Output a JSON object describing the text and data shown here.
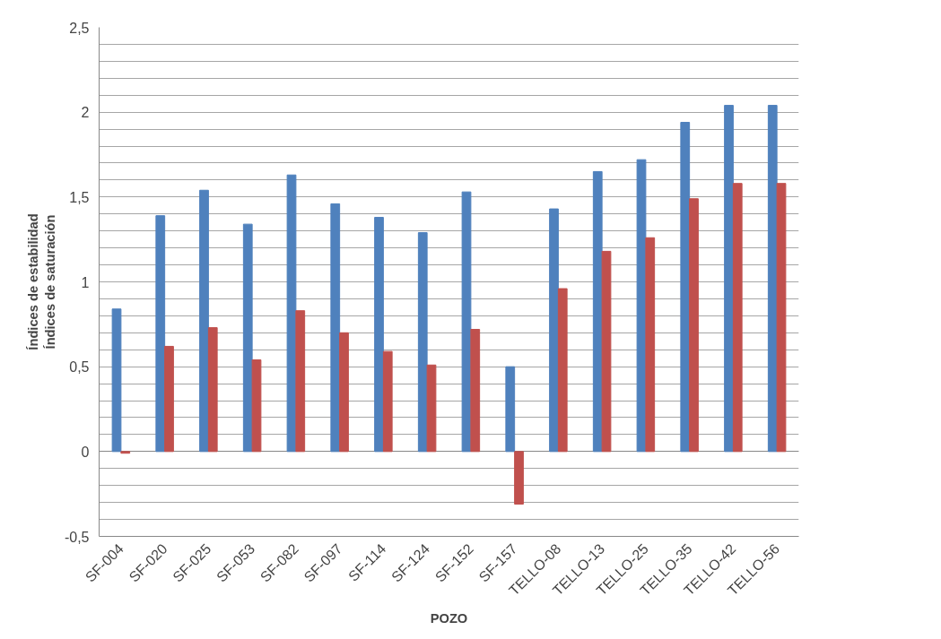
{
  "chart_data": {
    "type": "bar",
    "xlabel": "POZO",
    "ylabel": "Índices de estabilidad\nÍndices de saturación",
    "categories": [
      "SF-004",
      "SF-020",
      "SF-025",
      "SF-053",
      "SF-082",
      "SF-097",
      "SF-114",
      "SF-124",
      "SF-152",
      "SF-157",
      "TELLO-08",
      "TELLO-13",
      "TELLO-25",
      "TELLO-35",
      "TELLO-42",
      "TELLO-56"
    ],
    "series": [
      {
        "color": "#4f81bd",
        "values": [
          0.84,
          1.39,
          1.54,
          1.34,
          1.63,
          1.46,
          1.38,
          1.29,
          1.53,
          0.5,
          1.43,
          1.65,
          1.72,
          1.94,
          2.04,
          2.04
        ]
      },
      {
        "color": "#c0504d",
        "values": [
          -0.01,
          0.62,
          0.73,
          0.54,
          0.83,
          0.7,
          0.59,
          0.51,
          0.72,
          -0.31,
          0.96,
          1.18,
          1.26,
          1.49,
          1.58,
          1.58
        ]
      }
    ],
    "ylim": [
      -0.5,
      2.5
    ],
    "yticks": [
      {
        "value": -0.5,
        "label": "-0,5"
      },
      {
        "value": -0.4,
        "label": null
      },
      {
        "value": -0.3,
        "label": null
      },
      {
        "value": -0.2,
        "label": null
      },
      {
        "value": -0.1,
        "label": null
      },
      0,
      {
        "value": 0.1,
        "label": null
      },
      {
        "value": 0.2,
        "label": null
      },
      {
        "value": 0.3,
        "label": null
      },
      {
        "value": 0.4,
        "label": null
      },
      {
        "value": 0.5,
        "label": "0,5"
      },
      {
        "value": 0.6,
        "label": null
      },
      {
        "value": 0.7,
        "label": null
      },
      {
        "value": 0.8,
        "label": null
      },
      {
        "value": 0.9,
        "label": null
      },
      1,
      {
        "value": 1.1,
        "label": null
      },
      {
        "value": 1.2,
        "label": null
      },
      {
        "value": 1.3,
        "label": null
      },
      {
        "value": 1.4,
        "label": null
      },
      {
        "value": 1.5,
        "label": "1,5"
      },
      {
        "value": 1.6,
        "label": null
      },
      {
        "value": 1.7,
        "label": null
      },
      {
        "value": 1.8,
        "label": null
      },
      {
        "value": 1.9,
        "label": null
      },
      2,
      {
        "value": 2.1,
        "label": null
      },
      {
        "value": 2.2,
        "label": null
      },
      {
        "value": 2.3,
        "label": null
      },
      {
        "value": 2.4,
        "label": null
      },
      {
        "value": 2.5,
        "label": "2,5"
      }
    ],
    "grid": "y"
  }
}
